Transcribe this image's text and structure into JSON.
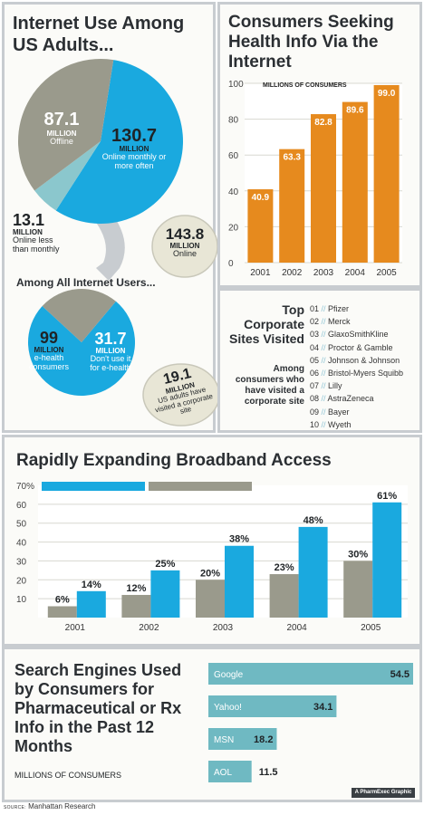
{
  "colors": {
    "blue": "#1aa9df",
    "gray": "#9a9a8c",
    "orange": "#e68a1e",
    "teal": "#6fc2cc",
    "light_teal": "#a6c9cc",
    "panel_bg": "#fbfbf8",
    "border": "#c8ccd0",
    "bubble": "#e8e6d6",
    "bubble_border": "#c9c8ba",
    "text": "#2b2f33",
    "grid": "#d8d8d0",
    "grid_panel": "#e6e6e4"
  },
  "source": {
    "prefix": "SOURCE:",
    "name": "Manhattan Research"
  },
  "credit": "A PharmExec Graphic",
  "chart_data": [
    {
      "type": "pie",
      "title": "Internet Use Among US Adults...",
      "unit": "MILLION",
      "slices": [
        {
          "value": 130.7,
          "value_label": "130.7",
          "label": "Online monthly or more often",
          "color": "#1aa9df"
        },
        {
          "value": 13.1,
          "value_label": "13.1",
          "label": "Online less than monthly",
          "color": "#8bc7cd"
        },
        {
          "value": 87.1,
          "value_label": "87.1",
          "label": "Offline",
          "color": "#9a9a8c"
        }
      ],
      "callout": {
        "value": "143.8",
        "unit": "MILLION",
        "label": "Online"
      }
    },
    {
      "type": "pie",
      "title": "Among All Internet Users...",
      "unit": "MILLION",
      "slices": [
        {
          "value": 99,
          "value_label": "99",
          "label": "e-health consumers",
          "color": "#1aa9df"
        },
        {
          "value": 31.7,
          "value_label": "31.7",
          "label": "Don't use it for e-health",
          "color": "#9a9a8c"
        }
      ],
      "callout": {
        "value": "19.1",
        "unit": "MILLION",
        "label": "US adults have visited a corporate site"
      }
    },
    {
      "type": "bar",
      "title": "Consumers Seeking Health Info Via the Internet",
      "ylabel": "MILLIONS OF CONSUMERS",
      "categories": [
        "2001",
        "2002",
        "2003",
        "2004",
        "2005"
      ],
      "values": [
        40.9,
        63.3,
        82.8,
        89.6,
        99.0
      ],
      "value_labels": [
        "40.9",
        "63.3",
        "82.8",
        "89.6",
        "99.0"
      ],
      "ylim": [
        0,
        100
      ],
      "yticks": [
        0,
        20,
        40,
        60,
        80,
        100
      ],
      "grid": true,
      "color": "#e68a1e"
    },
    {
      "type": "table",
      "title": "Top Corporate Sites Visited",
      "subtitle": "Among consumers who have visited a corporate site",
      "rows": [
        {
          "rank": "01",
          "name": "Pfizer"
        },
        {
          "rank": "02",
          "name": "Merck"
        },
        {
          "rank": "03",
          "name": "GlaxoSmithKline"
        },
        {
          "rank": "04",
          "name": "Proctor & Gamble"
        },
        {
          "rank": "05",
          "name": "Johnson & Johnson"
        },
        {
          "rank": "06",
          "name": "Bristol-Myers Squibb"
        },
        {
          "rank": "07",
          "name": "Lilly"
        },
        {
          "rank": "08",
          "name": "AstraZeneca"
        },
        {
          "rank": "09",
          "name": "Bayer"
        },
        {
          "rank": "10",
          "name": "Wyeth"
        }
      ]
    },
    {
      "type": "bar",
      "title": "Rapidly Expanding Broadband Access",
      "categories": [
        "2001",
        "2002",
        "2003",
        "2004",
        "2005"
      ],
      "series": [
        {
          "values": [
            6,
            12,
            20,
            23,
            30
          ],
          "value_labels": [
            "6%",
            "12%",
            "20%",
            "23%",
            "30%"
          ],
          "color": "#9a9a8c"
        },
        {
          "values": [
            14,
            25,
            38,
            48,
            61
          ],
          "value_labels": [
            "14%",
            "25%",
            "38%",
            "48%",
            "61%"
          ],
          "color": "#1aa9df"
        }
      ],
      "ylim": [
        0,
        70
      ],
      "yticks": [
        10,
        20,
        30,
        40,
        50,
        60
      ],
      "top_tick_label": "70%",
      "grid": true,
      "legend": "top-left"
    },
    {
      "type": "bar",
      "orientation": "horizontal",
      "title": "Search Engines Used by Consumers for Pharmaceutical or Rx Info in the Past 12 Months",
      "unit_label": "MILLIONS OF CONSUMERS",
      "categories": [
        "Google",
        "Yahoo!",
        "MSN",
        "AOL"
      ],
      "values": [
        54.5,
        34.1,
        18.2,
        11.5
      ],
      "value_labels": [
        "54.5",
        "34.1",
        "18.2",
        "11.5"
      ],
      "xlim": [
        0,
        54.5
      ],
      "color": "#6fb9c2"
    }
  ]
}
